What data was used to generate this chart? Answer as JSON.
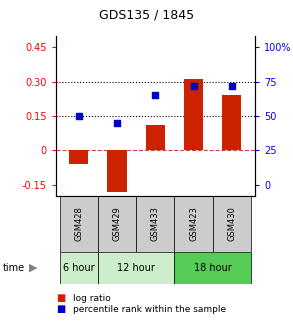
{
  "title": "GDS135 / 1845",
  "samples": [
    "GSM428",
    "GSM429",
    "GSM433",
    "GSM423",
    "GSM430"
  ],
  "log_ratio": [
    -0.06,
    -0.18,
    0.11,
    0.31,
    0.24
  ],
  "percentile_rank": [
    50,
    45,
    65,
    72,
    72
  ],
  "ylim_left": [
    -0.2,
    0.5
  ],
  "ylim_right": [
    -5.56,
    138.89
  ],
  "yticks_left": [
    -0.15,
    0.0,
    0.15,
    0.3,
    0.45
  ],
  "ytick_labels_left": [
    "-0.15",
    "0",
    "0.15",
    "0.30",
    "0.45"
  ],
  "yticks_right": [
    0,
    25,
    50,
    75,
    100
  ],
  "ytick_labels_right": [
    "0",
    "25",
    "50",
    "75",
    "100%"
  ],
  "hlines": [
    0.15,
    0.3
  ],
  "bar_color": "#CC2200",
  "dot_color": "#0000CC",
  "bar_width": 0.5,
  "sample_bg_color": "#CCCCCC",
  "time_groups": [
    {
      "label": "6 hour",
      "start": 0,
      "end": 1,
      "color": "#CCEECC"
    },
    {
      "label": "12 hour",
      "start": 1,
      "end": 3,
      "color": "#CCEECC"
    },
    {
      "label": "18 hour",
      "start": 3,
      "end": 5,
      "color": "#55CC55"
    }
  ]
}
